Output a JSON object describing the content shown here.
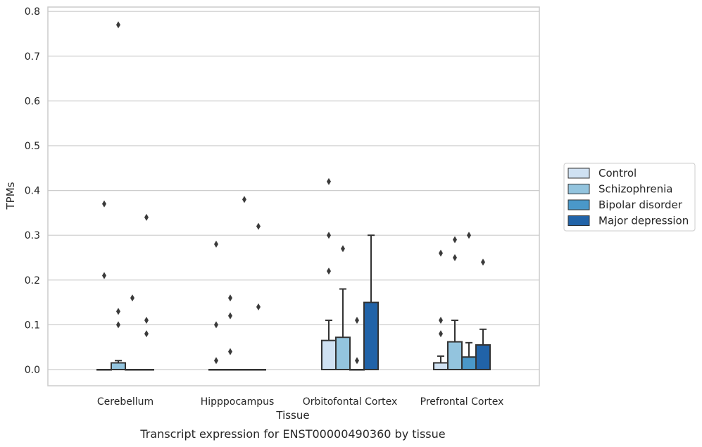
{
  "chart_data": {
    "type": "bar",
    "title": "",
    "caption": "Transcript expression for ENST00000490360 by tissue",
    "xlabel": "Tissue",
    "ylabel": "TPMs",
    "ylim": [
      -0.037,
      0.812
    ],
    "yticks": [
      "0.0",
      "0.1",
      "0.2",
      "0.3",
      "0.4",
      "0.5",
      "0.6",
      "0.7",
      "0.8"
    ],
    "grid": true,
    "legend_position": "right",
    "categories": [
      "Cerebellum",
      "Hipppocampus",
      "Orbitofontal Cortex",
      "Prefrontal Cortex"
    ],
    "series": [
      {
        "name": "Control",
        "color": "#cfe1f2",
        "values": [
          0.0,
          0.0,
          0.065,
          0.015
        ],
        "error_upper": [
          0.0,
          0.0,
          0.11,
          0.03
        ],
        "outliers": [
          [
            0.37,
            0.21
          ],
          [
            0.28,
            0.1,
            0.02
          ],
          [
            0.42,
            0.3,
            0.22
          ],
          [
            0.26,
            0.11,
            0.08
          ]
        ]
      },
      {
        "name": "Schizophrenia",
        "color": "#93c4de",
        "values": [
          0.015,
          0.0,
          0.072,
          0.062
        ],
        "error_upper": [
          0.02,
          0.0,
          0.18,
          0.11
        ],
        "outliers": [
          [
            0.77,
            0.13,
            0.1
          ],
          [
            0.16,
            0.12,
            0.04
          ],
          [
            0.27
          ],
          [
            0.29,
            0.25
          ]
        ]
      },
      {
        "name": "Bipolar disorder",
        "color": "#4a98c9",
        "values": [
          0.0,
          0.0,
          0.0,
          0.028
        ],
        "error_upper": [
          0.0,
          0.0,
          0.0,
          0.06
        ],
        "outliers": [
          [
            0.16
          ],
          [
            0.38
          ],
          [
            0.11,
            0.02
          ],
          [
            0.3
          ]
        ]
      },
      {
        "name": "Major depression",
        "color": "#2163a8",
        "values": [
          0.0,
          0.0,
          0.15,
          0.055
        ],
        "error_upper": [
          0.0,
          0.0,
          0.3,
          0.09
        ],
        "outliers": [
          [
            0.34,
            0.11,
            0.08
          ],
          [
            0.32,
            0.14
          ],
          [],
          [
            0.24
          ]
        ]
      }
    ]
  }
}
